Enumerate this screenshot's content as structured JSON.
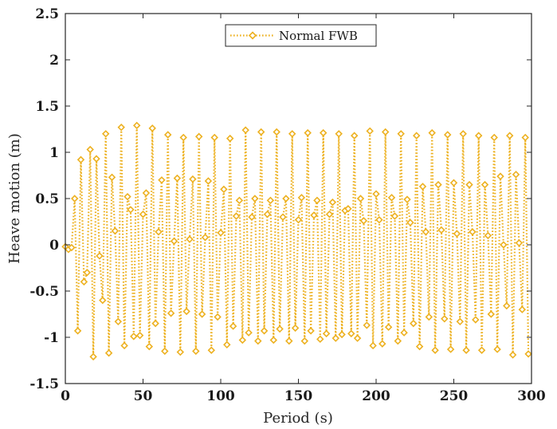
{
  "chart_data": {
    "type": "line",
    "xlabel": "Period (s)",
    "ylabel": "Heave motion (m)",
    "xlim": [
      0,
      300
    ],
    "ylim": [
      -1.5,
      2.5
    ],
    "xticks": [
      "0",
      "50",
      "100",
      "150",
      "200",
      "250",
      "300"
    ],
    "yticks": [
      "-1.5",
      "-1",
      "-0.5",
      "0",
      "0.5",
      "1",
      "1.5",
      "2",
      "2.5"
    ],
    "grid": false,
    "legend_position": "top-center",
    "series": [
      {
        "name": "Normal FWB",
        "color": "#EDB120",
        "line_style": "dotted",
        "marker": "diamond",
        "x": [
          0,
          2,
          4,
          6,
          8,
          10,
          12,
          14,
          16,
          18,
          20,
          22,
          24,
          26,
          28,
          30,
          32,
          34,
          36,
          38,
          40,
          42,
          44,
          46,
          48,
          50,
          52,
          54,
          56,
          58,
          60,
          62,
          64,
          66,
          68,
          70,
          72,
          74,
          76,
          78,
          80,
          82,
          84,
          86,
          88,
          90,
          92,
          94,
          96,
          98,
          100,
          102,
          104,
          106,
          108,
          110,
          112,
          114,
          116,
          118,
          120,
          122,
          124,
          126,
          128,
          130,
          132,
          134,
          136,
          138,
          140,
          142,
          144,
          146,
          148,
          150,
          152,
          154,
          156,
          158,
          160,
          162,
          164,
          166,
          168,
          170,
          172,
          174,
          176,
          178,
          180,
          182,
          184,
          186,
          188,
          190,
          192,
          194,
          196,
          198,
          200,
          202,
          204,
          206,
          208,
          210,
          212,
          214,
          216,
          218,
          220,
          222,
          224,
          226,
          228,
          230,
          232,
          234,
          236,
          238,
          240,
          242,
          244,
          246,
          248,
          250,
          252,
          254,
          256,
          258,
          260,
          262,
          264,
          266,
          268,
          270,
          272,
          274,
          276,
          278,
          280,
          282,
          284,
          286,
          288,
          290,
          292,
          294,
          296,
          298
        ],
        "y": [
          -0.02,
          -0.05,
          -0.03,
          0.5,
          -0.93,
          0.92,
          -0.4,
          -0.3,
          1.03,
          -1.21,
          0.93,
          -0.12,
          -0.6,
          1.2,
          -1.17,
          0.73,
          0.15,
          -0.83,
          1.27,
          -1.09,
          0.52,
          0.38,
          -0.99,
          1.29,
          -0.98,
          0.33,
          0.56,
          -1.1,
          1.26,
          -0.85,
          0.14,
          0.7,
          -1.15,
          1.19,
          -0.74,
          0.04,
          0.72,
          -1.16,
          1.16,
          -0.72,
          0.06,
          0.71,
          -1.15,
          1.17,
          -0.75,
          0.08,
          0.69,
          -1.14,
          1.16,
          -0.78,
          0.13,
          0.6,
          -1.08,
          1.15,
          -0.88,
          0.31,
          0.48,
          -1.03,
          1.24,
          -0.95,
          0.3,
          0.5,
          -1.04,
          1.22,
          -0.93,
          0.33,
          0.48,
          -1.03,
          1.22,
          -0.91,
          0.3,
          0.5,
          -1.04,
          1.2,
          -0.9,
          0.27,
          0.51,
          -1.04,
          1.21,
          -0.93,
          0.32,
          0.48,
          -1.02,
          1.21,
          -0.96,
          0.33,
          0.46,
          -1.01,
          1.2,
          -0.97,
          0.37,
          0.39,
          -0.96,
          1.18,
          -1.01,
          0.5,
          0.26,
          -0.87,
          1.23,
          -1.09,
          0.55,
          0.27,
          -1.07,
          1.22,
          -0.89,
          0.51,
          0.31,
          -1.04,
          1.2,
          -0.95,
          0.49,
          0.24,
          -0.85,
          1.18,
          -1.1,
          0.63,
          0.14,
          -0.78,
          1.21,
          -1.14,
          0.65,
          0.16,
          -0.8,
          1.19,
          -1.13,
          0.67,
          0.12,
          -0.83,
          1.2,
          -1.14,
          0.65,
          0.14,
          -0.81,
          1.18,
          -1.14,
          0.65,
          0.1,
          -0.75,
          1.16,
          -1.13,
          0.74,
          0.0,
          -0.66,
          1.18,
          -1.19,
          0.76,
          0.02,
          -0.7,
          1.16,
          -1.18
        ]
      }
    ]
  }
}
